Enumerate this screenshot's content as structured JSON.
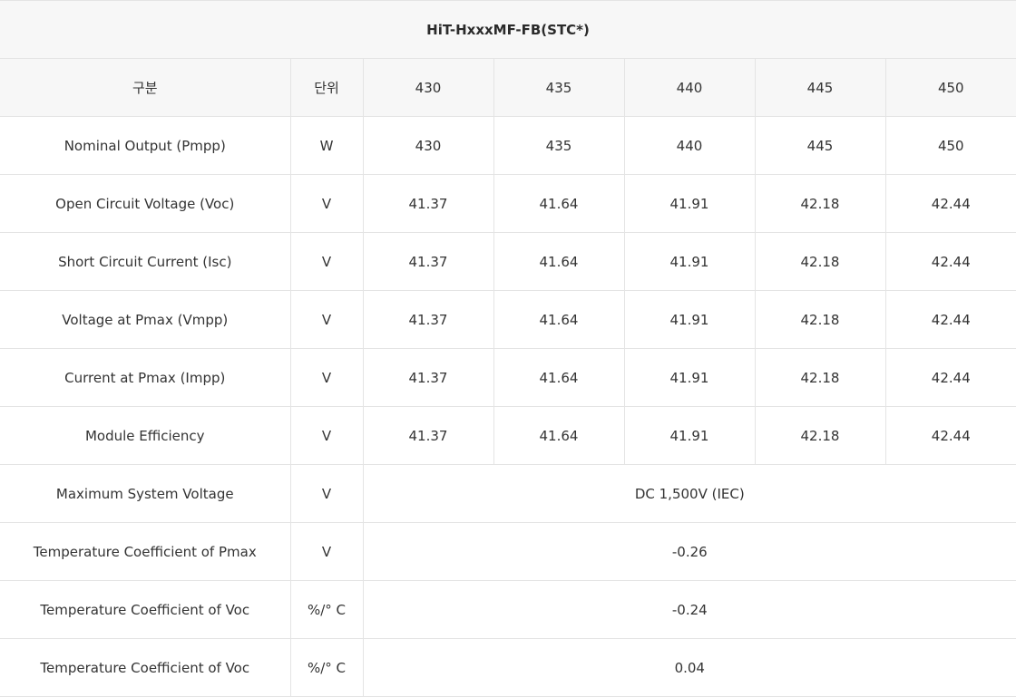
{
  "table": {
    "title": "HiT-HxxxMF-FB(STC*)",
    "headers": {
      "category": "구분",
      "unit": "단위",
      "models": [
        "430",
        "435",
        "440",
        "445",
        "450"
      ]
    },
    "rows": [
      {
        "label": "Nominal Output (Pmpp)",
        "unit": "W",
        "values": [
          "430",
          "435",
          "440",
          "445",
          "450"
        ]
      },
      {
        "label": "Open Circuit Voltage (Voc)",
        "unit": "V",
        "values": [
          "41.37",
          "41.64",
          "41.91",
          "42.18",
          "42.44"
        ]
      },
      {
        "label": "Short Circuit Current (Isc)",
        "unit": "V",
        "values": [
          "41.37",
          "41.64",
          "41.91",
          "42.18",
          "42.44"
        ]
      },
      {
        "label": "Voltage at Pmax (Vmpp)",
        "unit": "V",
        "values": [
          "41.37",
          "41.64",
          "41.91",
          "42.18",
          "42.44"
        ]
      },
      {
        "label": "Current at Pmax (Impp)",
        "unit": "V",
        "values": [
          "41.37",
          "41.64",
          "41.91",
          "42.18",
          "42.44"
        ]
      },
      {
        "label": "Module Efficiency",
        "unit": "V",
        "values": [
          "41.37",
          "41.64",
          "41.91",
          "42.18",
          "42.44"
        ]
      }
    ],
    "merged_rows": [
      {
        "label": "Maximum System Voltage",
        "unit": "V",
        "value": "DC 1,500V (IEC)"
      },
      {
        "label": "Temperature Coefficient of Pmax",
        "unit": "V",
        "value": "-0.26"
      },
      {
        "label": "Temperature Coefficient of Voc",
        "unit": "%/° C",
        "value": "-0.24"
      },
      {
        "label": "Temperature Coefficient of Voc",
        "unit": "%/° C",
        "value": "0.04"
      }
    ]
  }
}
